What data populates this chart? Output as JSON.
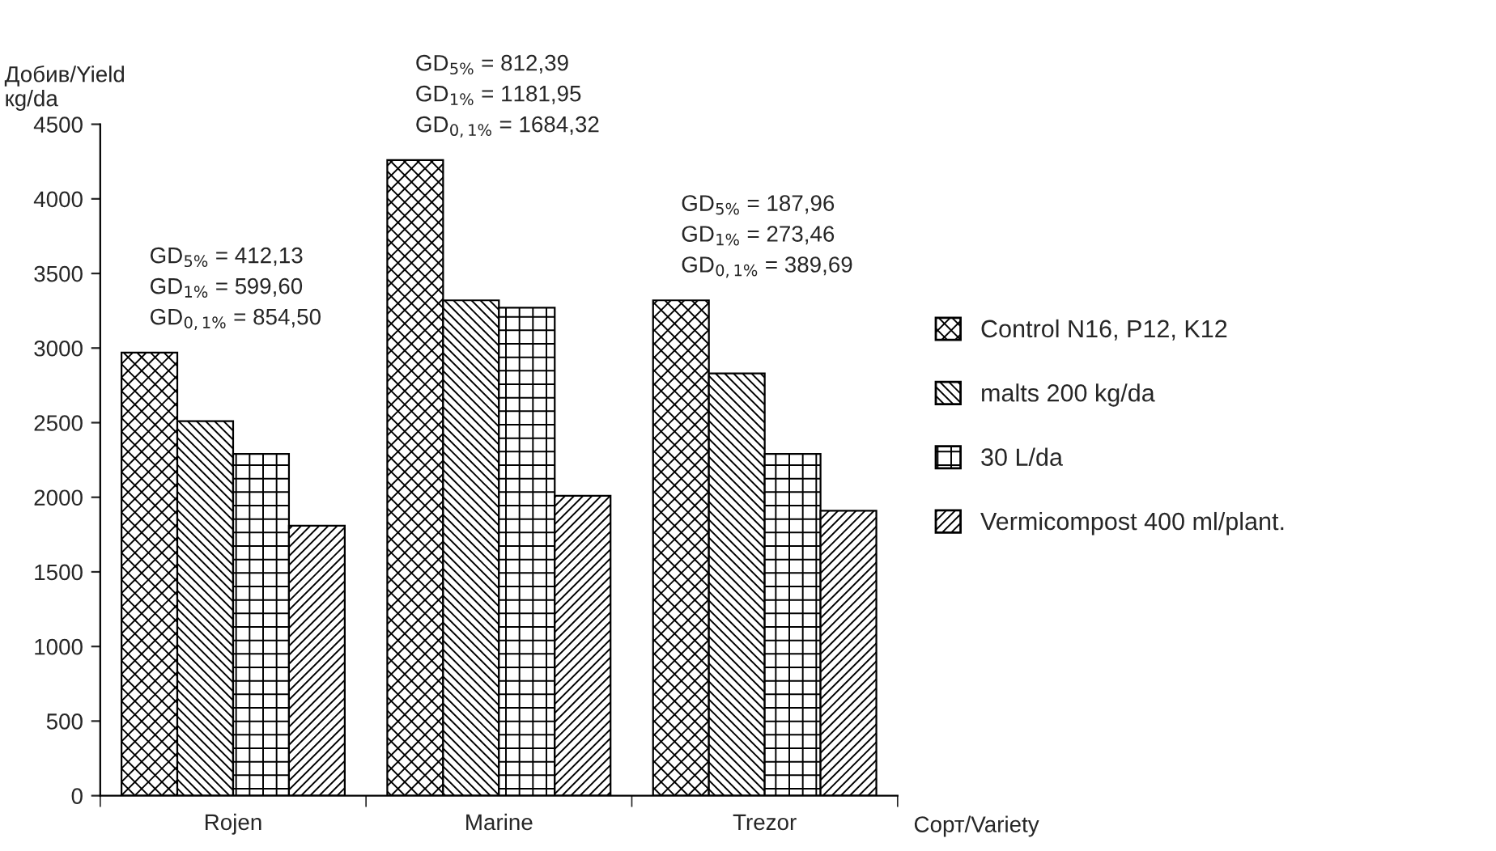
{
  "chart_data": {
    "type": "bar",
    "categories": [
      "Rojen",
      "Marine",
      "Trezor"
    ],
    "series": [
      {
        "name": "Control N16, P12, K12",
        "color": "#000000",
        "values": [
          2970,
          4260,
          3320
        ]
      },
      {
        "name": "malts 200 kg/da",
        "color": "#000000",
        "values": [
          2510,
          3320,
          2830
        ]
      },
      {
        "name": "30 L/da",
        "color": "#000000",
        "values": [
          2290,
          3270,
          2290
        ]
      },
      {
        "name": "Vermicompost 400 ml/plant.",
        "color": "#000000",
        "values": [
          1810,
          2010,
          1910
        ]
      }
    ],
    "ylabel": "Добив/Yield\nкg/da",
    "xlabel": "Сорт/Variety",
    "ylim": [
      0,
      4500
    ],
    "yticks": [
      0,
      500,
      1000,
      1500,
      2000,
      2500,
      3000,
      3500,
      4000,
      4500
    ],
    "annotations": [
      "GD$_{5%}$ = 412,13\nGD$_{1%}$ = 599,60\nGD$_{0,1%}$ = 854,50",
      "GD$_{5%}$ = 812,39\nGD$_{1%}$ = 1181,95\nGD$_{0,1%}$ = 1684,32",
      "GD$_{5%}$ = 187,96\nGD$_{1%}$ = 273,46\nGD$_{0,1%}$ = 389,69"
    ],
    "grid": false,
    "legend": "right"
  }
}
